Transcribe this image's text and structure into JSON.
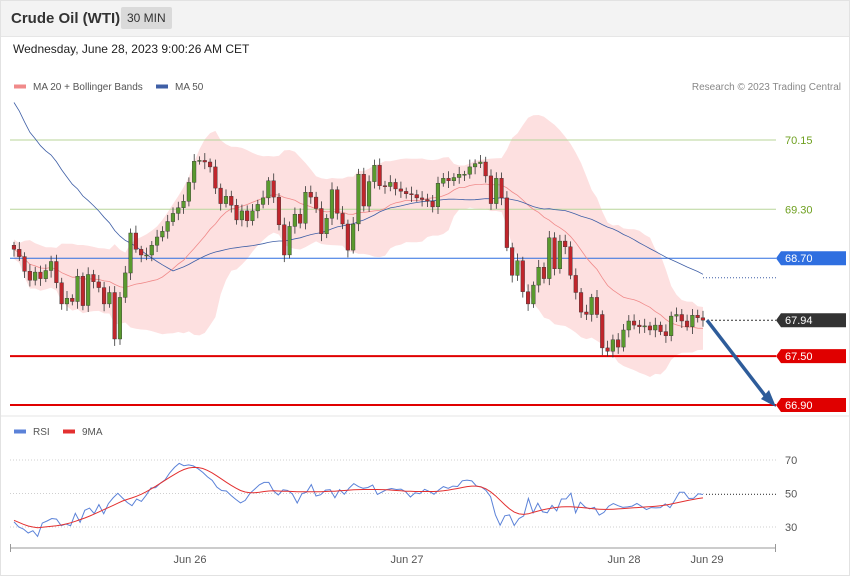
{
  "header": {
    "title": "Crude Oil (WTI)",
    "timeframe": "30 MIN",
    "datetime": "Wednesday, June 28, 2023 9:00:26 AM CET"
  },
  "legend": {
    "ma20": "MA 20 + Bollinger Bands",
    "ma50": "MA 50",
    "credit": "Research © 2023 Trading Central"
  },
  "rsi_legend": {
    "rsi": "RSI",
    "ma9": "9MA"
  },
  "colors": {
    "ma20_band": "#fde0e0",
    "ma20_line": "#f08a8a",
    "ma50": "#3f5fa6",
    "candle_up": "#5a9a2e",
    "candle_down": "#c0262c",
    "resistance_green": "#b8d59a",
    "pivot_blue": "#2f6fe0",
    "support_red": "#e00000",
    "arrow": "#2e5c9a",
    "rsi": "#5b82d8",
    "rsi_ma": "#e33030",
    "label_green_text": "#6fa020",
    "current_label_bg": "#333333"
  },
  "chart_data": {
    "type": "candlestick",
    "x_axis_labels": [
      "Jun 26",
      "Jun 27",
      "Jun 28",
      "Jun 29"
    ],
    "price_levels": [
      {
        "value": "70.15",
        "kind": "resistance"
      },
      {
        "value": "69.30",
        "kind": "resistance"
      },
      {
        "value": "68.70",
        "kind": "pivot"
      },
      {
        "value": "67.94",
        "kind": "current"
      },
      {
        "value": "67.50",
        "kind": "support"
      },
      {
        "value": "66.90",
        "kind": "support"
      }
    ],
    "ohlc_close": [
      68.81,
      68.72,
      68.54,
      68.43,
      68.53,
      68.45,
      68.55,
      68.66,
      68.4,
      68.14,
      68.21,
      68.17,
      68.48,
      68.12,
      68.5,
      68.41,
      68.34,
      68.14,
      68.28,
      67.71,
      68.22,
      68.52,
      69.01,
      68.81,
      68.74,
      68.74,
      68.86,
      68.96,
      69.03,
      69.15,
      69.25,
      69.32,
      69.4,
      69.63,
      69.89,
      69.9,
      69.88,
      69.82,
      69.56,
      69.37,
      69.46,
      69.35,
      69.17,
      69.28,
      69.16,
      69.28,
      69.36,
      69.44,
      69.65,
      69.45,
      69.11,
      68.74,
      69.09,
      69.24,
      69.13,
      69.51,
      69.45,
      69.31,
      69.0,
      69.19,
      69.54,
      69.25,
      69.12,
      68.8,
      69.12,
      69.73,
      69.34,
      69.64,
      69.84,
      69.59,
      69.58,
      69.63,
      69.55,
      69.52,
      69.49,
      69.48,
      69.44,
      69.42,
      69.4,
      69.33,
      69.62,
      69.68,
      69.65,
      69.69,
      69.73,
      69.73,
      69.82,
      69.86,
      69.88,
      69.71,
      69.37,
      69.68,
      69.44,
      68.83,
      68.49,
      68.67,
      68.29,
      68.14,
      68.37,
      68.59,
      68.45,
      68.95,
      68.57,
      68.91,
      68.84,
      68.49,
      68.28,
      68.04,
      68.01,
      68.22,
      68.01,
      67.6,
      67.56,
      67.7,
      67.61,
      67.82,
      67.93,
      67.88,
      67.86,
      67.87,
      67.82,
      67.88,
      67.8,
      67.75,
      67.99,
      68.01,
      67.93,
      67.86,
      68.0,
      67.97,
      67.94
    ],
    "rsi": {
      "ylim": [
        20,
        80
      ],
      "ticks": [
        70,
        50,
        30
      ],
      "rsi_values": [
        33.1,
        30.0,
        28.8,
        26.4,
        27.8,
        24.4,
        32.3,
        33.6,
        35.1,
        34.7,
        30.8,
        31.8,
        30.8,
        38.2,
        32.8,
        40.0,
        41.3,
        38.0,
        43.4,
        37.9,
        44.0,
        47.4,
        50.1,
        47.3,
        44.6,
        42.7,
        46.7,
        45.3,
        48.9,
        53.3,
        53.5,
        56.1,
        58.1,
        62.3,
        65.6,
        68.0,
        66.6,
        67.1,
        66.5,
        64.8,
        62.6,
        59.9,
        57.8,
        53.8,
        51.8,
        51.5,
        48.8,
        46.5,
        44.4,
        45.9,
        50.1,
        52.6,
        55.2,
        56.6,
        56.6,
        51.5,
        49.1,
        52.2,
        51.8,
        49.7,
        44.3,
        49.8,
        50.8,
        55.3,
        48.5,
        49.3,
        52.0,
        52.3,
        47.5,
        52.3,
        49.6,
        53.2,
        55.9,
        54.1,
        53.1,
        53.6,
        55.1,
        49.4,
        50.9,
        52.3,
        53.0,
        52.4,
        52.6,
        51.0,
        47.9,
        50.4,
        49.9,
        52.5,
        51.2,
        49.6,
        52.1,
        54.1,
        53.1,
        54.4,
        54.2,
        57.6,
        58.0,
        57.5,
        54.4,
        54.0,
        51.9,
        48.1,
        37.3,
        31.1,
        36.7,
        37.2,
        30.9,
        35.1,
        36.6,
        47.1,
        38.5,
        44.2,
        39.1,
        38.5,
        42.9,
        39.6,
        46.7,
        46.8,
        50.2,
        38.5,
        44.8,
        42.0,
        40.8,
        41.7,
        37.1,
        38.7,
        42.4,
        44.0,
        42.7,
        41.7,
        42.0,
        42.5,
        44.1,
        42.3,
        40.4,
        41.6,
        41.4,
        41.6,
        43.8,
        41.5,
        45.8,
        50.7,
        50.7,
        47.0,
        47.2,
        49.8,
        49.4
      ],
      "ma9_values": [
        34.0,
        32.8,
        31.6,
        30.6,
        30.0,
        29.5,
        29.8,
        30.2,
        30.5,
        30.8,
        31.2,
        31.8,
        32.5,
        33.4,
        34.4,
        35.4,
        36.5,
        37.7,
        39.0,
        40.3,
        41.6,
        42.9,
        44.2,
        45.5,
        46.5,
        47.4,
        48.4,
        49.6,
        51.0,
        52.6,
        54.3,
        56.1,
        57.9,
        59.7,
        61.4,
        63.0,
        64.3,
        65.2,
        65.6,
        65.5,
        64.9,
        63.8,
        62.3,
        60.5,
        58.6,
        56.7,
        54.9,
        53.2,
        51.8,
        50.9,
        50.5,
        50.5,
        50.8,
        51.2,
        51.5,
        51.6,
        51.5,
        51.4,
        51.3,
        51.2,
        51.1,
        51.0,
        51.0,
        51.0,
        51.0,
        51.1,
        51.2,
        51.3,
        51.4,
        51.6,
        51.8,
        52.0,
        52.2,
        52.3,
        52.4,
        52.4,
        52.4,
        52.4,
        52.3,
        52.2,
        52.0,
        51.8,
        51.6,
        51.4,
        51.3,
        51.2,
        51.2,
        51.2,
        51.2,
        51.2,
        51.3,
        51.6,
        52.0,
        52.5,
        53.0,
        53.6,
        54.1,
        54.4,
        54.4,
        53.9,
        52.8,
        51.0,
        48.7,
        46.0,
        43.3,
        40.8,
        38.9,
        37.8,
        37.5,
        37.9,
        38.7,
        39.5,
        40.2,
        40.8,
        41.3,
        41.7,
        42.0,
        42.1,
        42.1,
        41.9,
        41.7,
        41.4,
        41.1,
        40.8,
        40.6,
        40.5,
        40.5,
        40.6,
        40.8,
        41.0,
        41.2,
        41.4,
        41.6,
        41.8,
        42.0,
        42.2,
        42.4,
        42.7,
        43.1,
        43.6,
        44.2,
        44.8,
        45.4,
        46.0,
        46.5,
        47.0,
        47.4
      ]
    }
  }
}
